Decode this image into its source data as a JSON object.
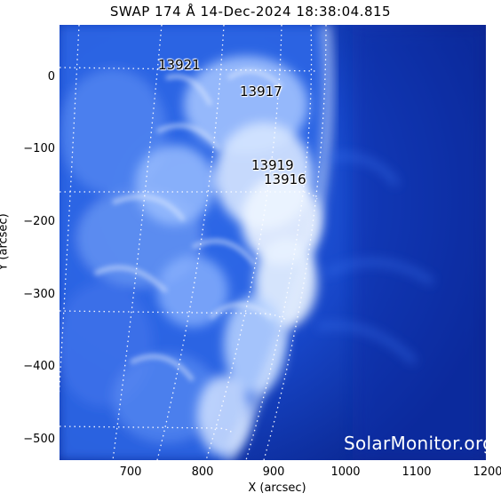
{
  "title": "SWAP 174 Å 14-Dec-2024 18:38:04.815",
  "xlabel": "X (arcsec)",
  "ylabel": "Y (arcsec)",
  "x_ticks": [
    "700",
    "800",
    "900",
    "1000",
    "1100",
    "1200"
  ],
  "y_ticks": [
    "0",
    "−100",
    "−200",
    "−300",
    "−400",
    "−500"
  ],
  "active_regions": [
    "13921",
    "13917",
    "13919",
    "13916"
  ],
  "watermark": "SolarMonitor.org",
  "colors": {
    "background": "#ffffff",
    "disk_bright": "#e8f2ff",
    "disk_mid": "#4a86ff",
    "corona": "#0b2a9c"
  }
}
